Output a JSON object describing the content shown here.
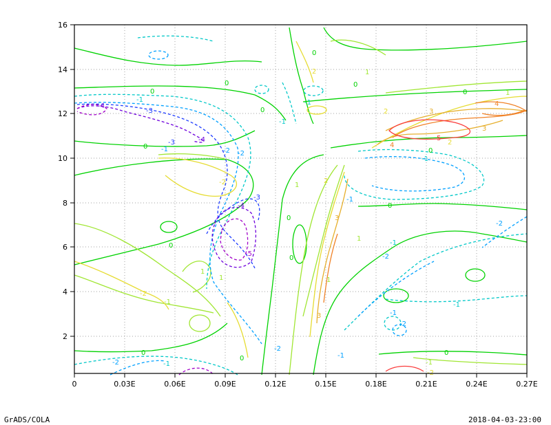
{
  "chart_data": {
    "type": "contour",
    "x_ticks": [
      "0",
      "0.03E",
      "0.06E",
      "0.09E",
      "0.12E",
      "0.15E",
      "0.18E",
      "0.21E",
      "0.24E",
      "0.27E"
    ],
    "y_ticks": [
      "2",
      "4",
      "6",
      "8",
      "10",
      "12",
      "14",
      "16"
    ],
    "xlim": [
      0,
      0.27
    ],
    "ylim": [
      0.3,
      16
    ],
    "grid": true,
    "contour_levels": [
      -5,
      -4,
      -3,
      -2,
      -1,
      0,
      1,
      2,
      3,
      4,
      5
    ],
    "level_colors": {
      "-5": "#a000c8",
      "-4": "#6e00dc",
      "-3": "#1e3cff",
      "-2": "#00a0ff",
      "-1": "#00c8c8",
      "0": "#00d200",
      "1": "#a0e632",
      "2": "#e6dc32",
      "3": "#e6af2d",
      "4": "#f08228",
      "5": "#fa3c3c"
    },
    "features": [
      {
        "x": 0.013,
        "y": 12.1,
        "value": -4
      },
      {
        "x": 0.103,
        "y": 6.3,
        "value": -5
      },
      {
        "x": 0.192,
        "y": 11.1,
        "value": 5
      },
      {
        "x": 0.252,
        "y": 12.0,
        "value": 4
      }
    ]
  },
  "footer": {
    "left": "GrADS/COLA",
    "right": "2018-04-03-23:00"
  }
}
